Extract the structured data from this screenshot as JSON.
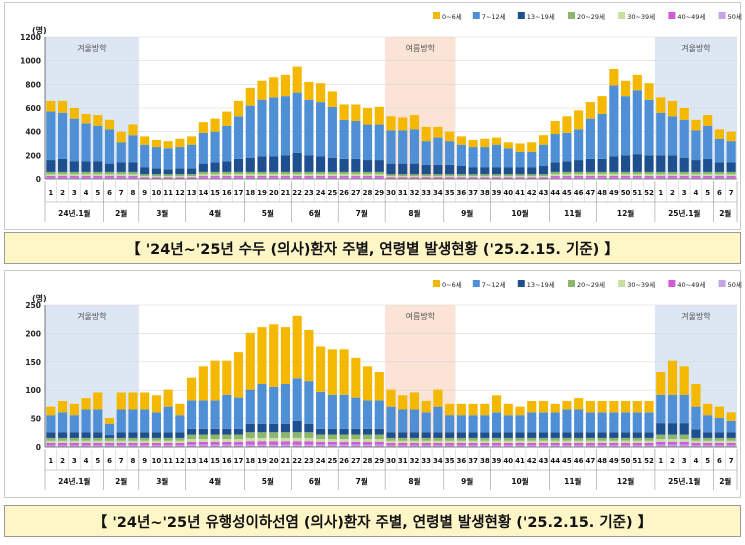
{
  "captions": [
    "【 '24년~'25년 수두 (의사)환자 주별, 연령별 발생현황 ('25.2.15. 기준) 】",
    "【 '24년~'25년 유행성이하선염 (의사)환자 주별, 연령별 발생현황 ('25.2.15. 기준) 】"
  ],
  "legend": [
    {
      "label": "0~6세",
      "color": "#f5b800"
    },
    {
      "label": "7~12세",
      "color": "#4f8fd6"
    },
    {
      "label": "13~19세",
      "color": "#1e4f8e"
    },
    {
      "label": "20~29세",
      "color": "#8cb56e"
    },
    {
      "label": "30~39세",
      "color": "#c7dfa0"
    },
    {
      "label": "40~49세",
      "color": "#d05ad8"
    },
    {
      "label": "50세 이상",
      "color": "#c9a3e8"
    }
  ],
  "periods": [
    {
      "label": "겨울방학",
      "start": 0,
      "end": 8,
      "fill": "#dde6f3"
    },
    {
      "label": "여름방학",
      "start": 29,
      "end": 35,
      "fill": "#fbe3d5"
    },
    {
      "label": "겨울방학",
      "start": 52,
      "end": 59,
      "fill": "#dde6f3"
    }
  ],
  "weeks": [
    "1",
    "2",
    "3",
    "4",
    "5",
    "6",
    "7",
    "8",
    "9",
    "10",
    "11",
    "12",
    "13",
    "14",
    "15",
    "16",
    "17",
    "18",
    "19",
    "20",
    "21",
    "22",
    "23",
    "24",
    "25",
    "26",
    "27",
    "28",
    "29",
    "30",
    "31",
    "32",
    "33",
    "34",
    "35",
    "36",
    "37",
    "38",
    "39",
    "40",
    "41",
    "42",
    "43",
    "44",
    "45",
    "46",
    "47",
    "48",
    "49",
    "50",
    "51",
    "52",
    "1",
    "2",
    "3",
    "4",
    "5",
    "6",
    "7"
  ],
  "months": [
    {
      "label": "24년.1월",
      "start": 0,
      "end": 4
    },
    {
      "label": "2월",
      "start": 5,
      "end": 7
    },
    {
      "label": "3월",
      "start": 8,
      "end": 11
    },
    {
      "label": "4월",
      "start": 12,
      "end": 16
    },
    {
      "label": "5월",
      "start": 17,
      "end": 20
    },
    {
      "label": "6월",
      "start": 21,
      "end": 24
    },
    {
      "label": "7월",
      "start": 25,
      "end": 28
    },
    {
      "label": "8월",
      "start": 29,
      "end": 33
    },
    {
      "label": "9월",
      "start": 34,
      "end": 37
    },
    {
      "label": "10월",
      "start": 38,
      "end": 42
    },
    {
      "label": "11월",
      "start": 43,
      "end": 46
    },
    {
      "label": "12월",
      "start": 47,
      "end": 51
    },
    {
      "label": "25년.1월",
      "start": 52,
      "end": 56
    },
    {
      "label": "2월",
      "start": 57,
      "end": 58
    }
  ],
  "chart_data": [
    {
      "type": "bar",
      "stacked": true,
      "title": "'24년~'25년 수두 (의사)환자 주별, 연령별 발생현황 ('25.2.15. 기준)",
      "ylabel": "(명)",
      "ylim": [
        0,
        1200
      ],
      "yticks": [
        0,
        200,
        400,
        600,
        800,
        1000,
        1200
      ],
      "categories": [
        "1",
        "2",
        "3",
        "4",
        "5",
        "6",
        "7",
        "8",
        "9",
        "10",
        "11",
        "12",
        "13",
        "14",
        "15",
        "16",
        "17",
        "18",
        "19",
        "20",
        "21",
        "22",
        "23",
        "24",
        "25",
        "26",
        "27",
        "28",
        "29",
        "30",
        "31",
        "32",
        "33",
        "34",
        "35",
        "36",
        "37",
        "38",
        "39",
        "40",
        "41",
        "42",
        "43",
        "44",
        "45",
        "46",
        "47",
        "48",
        "49",
        "50",
        "51",
        "52",
        "1",
        "2",
        "3",
        "4",
        "5",
        "6",
        "7"
      ],
      "series": [
        {
          "name": "0~6세",
          "values": [
            90,
            100,
            90,
            80,
            90,
            80,
            90,
            90,
            70,
            60,
            60,
            70,
            70,
            90,
            110,
            120,
            130,
            150,
            160,
            170,
            180,
            220,
            150,
            160,
            130,
            130,
            140,
            140,
            150,
            120,
            110,
            120,
            120,
            90,
            80,
            70,
            60,
            70,
            60,
            50,
            70,
            80,
            80,
            110,
            140,
            160,
            140,
            150,
            140,
            130,
            130,
            140,
            130,
            130,
            100,
            90,
            90,
            80,
            80
          ]
        },
        {
          "name": "7~12세",
          "values": [
            410,
            390,
            360,
            320,
            300,
            290,
            170,
            230,
            190,
            180,
            180,
            180,
            200,
            260,
            260,
            300,
            360,
            440,
            480,
            500,
            500,
            510,
            470,
            460,
            430,
            330,
            320,
            300,
            300,
            280,
            280,
            290,
            200,
            230,
            200,
            180,
            170,
            170,
            190,
            160,
            130,
            130,
            180,
            240,
            240,
            260,
            340,
            380,
            600,
            500,
            540,
            470,
            360,
            330,
            320,
            250,
            280,
            200,
            180
          ]
        },
        {
          "name": "13~19세",
          "values": [
            100,
            110,
            90,
            90,
            90,
            70,
            80,
            80,
            60,
            50,
            40,
            50,
            50,
            70,
            80,
            90,
            110,
            120,
            130,
            130,
            140,
            160,
            140,
            130,
            120,
            110,
            110,
            100,
            100,
            90,
            90,
            90,
            80,
            80,
            80,
            70,
            60,
            60,
            60,
            60,
            60,
            60,
            70,
            80,
            90,
            100,
            110,
            110,
            130,
            140,
            150,
            140,
            140,
            140,
            120,
            100,
            110,
            80,
            80
          ]
        },
        {
          "name": "20~29세",
          "values": [
            20,
            20,
            20,
            20,
            20,
            20,
            20,
            20,
            15,
            15,
            15,
            15,
            15,
            20,
            20,
            20,
            20,
            20,
            20,
            20,
            20,
            20,
            20,
            20,
            20,
            20,
            20,
            20,
            20,
            15,
            15,
            15,
            15,
            15,
            15,
            15,
            15,
            15,
            15,
            15,
            15,
            15,
            15,
            20,
            20,
            20,
            20,
            20,
            20,
            20,
            20,
            20,
            20,
            20,
            20,
            20,
            20,
            20,
            20
          ]
        },
        {
          "name": "30~39세",
          "values": [
            15,
            15,
            15,
            15,
            15,
            15,
            15,
            15,
            10,
            10,
            10,
            10,
            10,
            15,
            15,
            15,
            15,
            15,
            15,
            15,
            15,
            15,
            15,
            15,
            15,
            15,
            15,
            15,
            15,
            10,
            10,
            10,
            10,
            10,
            10,
            10,
            10,
            10,
            10,
            10,
            10,
            10,
            10,
            15,
            15,
            15,
            15,
            15,
            15,
            15,
            15,
            15,
            15,
            15,
            15,
            15,
            15,
            15,
            15
          ]
        },
        {
          "name": "40~49세",
          "values": [
            15,
            15,
            15,
            15,
            15,
            15,
            15,
            15,
            10,
            10,
            10,
            10,
            10,
            15,
            15,
            15,
            15,
            15,
            15,
            15,
            15,
            15,
            15,
            15,
            15,
            15,
            15,
            15,
            15,
            10,
            10,
            10,
            10,
            10,
            10,
            10,
            10,
            10,
            10,
            10,
            10,
            10,
            10,
            15,
            15,
            15,
            15,
            15,
            15,
            15,
            15,
            15,
            15,
            15,
            15,
            15,
            15,
            15,
            15
          ]
        },
        {
          "name": "50세 이상",
          "values": [
            10,
            10,
            10,
            10,
            10,
            10,
            10,
            10,
            5,
            5,
            5,
            5,
            5,
            10,
            10,
            10,
            10,
            10,
            10,
            10,
            10,
            10,
            10,
            10,
            10,
            10,
            10,
            10,
            10,
            5,
            5,
            5,
            5,
            5,
            5,
            5,
            5,
            5,
            5,
            5,
            5,
            5,
            5,
            10,
            10,
            10,
            10,
            10,
            10,
            10,
            10,
            10,
            10,
            10,
            10,
            10,
            10,
            10,
            10
          ]
        }
      ]
    },
    {
      "type": "bar",
      "stacked": true,
      "title": "'24년~'25년 유행성이하선염 (의사)환자 주별, 연령별 발생현황 ('25.2.15. 기준)",
      "ylabel": "(명)",
      "ylim": [
        0,
        250
      ],
      "yticks": [
        0,
        50,
        100,
        150,
        200,
        250
      ],
      "categories": [
        "1",
        "2",
        "3",
        "4",
        "5",
        "6",
        "7",
        "8",
        "9",
        "10",
        "11",
        "12",
        "13",
        "14",
        "15",
        "16",
        "17",
        "18",
        "19",
        "20",
        "21",
        "22",
        "23",
        "24",
        "25",
        "26",
        "27",
        "28",
        "29",
        "30",
        "31",
        "32",
        "33",
        "34",
        "35",
        "36",
        "37",
        "38",
        "39",
        "40",
        "41",
        "42",
        "43",
        "44",
        "45",
        "46",
        "47",
        "48",
        "49",
        "50",
        "51",
        "52",
        "1",
        "2",
        "3",
        "4",
        "5",
        "6",
        "7"
      ],
      "series": [
        {
          "name": "0~6세",
          "values": [
            15,
            20,
            20,
            20,
            30,
            10,
            30,
            30,
            30,
            30,
            30,
            20,
            40,
            60,
            70,
            60,
            80,
            100,
            100,
            110,
            100,
            110,
            90,
            80,
            80,
            80,
            70,
            60,
            50,
            30,
            25,
            30,
            20,
            30,
            20,
            20,
            20,
            20,
            30,
            20,
            15,
            20,
            20,
            15,
            15,
            20,
            20,
            20,
            20,
            20,
            20,
            20,
            40,
            60,
            50,
            40,
            20,
            20,
            15
          ]
        },
        {
          "name": "7~12세",
          "values": [
            30,
            35,
            30,
            40,
            40,
            20,
            40,
            40,
            40,
            35,
            45,
            30,
            50,
            50,
            50,
            60,
            55,
            60,
            70,
            65,
            70,
            75,
            75,
            65,
            60,
            60,
            55,
            50,
            50,
            45,
            40,
            40,
            35,
            45,
            30,
            30,
            30,
            30,
            35,
            30,
            30,
            35,
            35,
            35,
            40,
            40,
            35,
            35,
            35,
            35,
            35,
            35,
            50,
            50,
            50,
            40,
            30,
            25,
            20
          ]
        },
        {
          "name": "13~19세",
          "values": [
            10,
            10,
            10,
            10,
            10,
            5,
            10,
            10,
            10,
            10,
            10,
            10,
            10,
            10,
            10,
            10,
            10,
            15,
            15,
            15,
            15,
            20,
            15,
            10,
            10,
            10,
            10,
            10,
            10,
            10,
            10,
            10,
            10,
            10,
            10,
            10,
            10,
            10,
            10,
            10,
            10,
            10,
            10,
            10,
            10,
            10,
            10,
            10,
            10,
            10,
            10,
            10,
            20,
            20,
            20,
            15,
            10,
            10,
            10
          ]
        },
        {
          "name": "20~29세",
          "values": [
            5,
            5,
            5,
            5,
            5,
            5,
            5,
            5,
            5,
            5,
            5,
            5,
            8,
            8,
            8,
            8,
            8,
            10,
            10,
            10,
            10,
            10,
            10,
            8,
            8,
            8,
            8,
            8,
            8,
            5,
            5,
            5,
            5,
            5,
            5,
            5,
            5,
            5,
            5,
            5,
            5,
            5,
            5,
            5,
            5,
            5,
            5,
            5,
            5,
            5,
            5,
            5,
            8,
            8,
            8,
            5,
            5,
            5,
            5
          ]
        },
        {
          "name": "30~39세",
          "values": [
            4,
            4,
            4,
            4,
            4,
            4,
            4,
            4,
            4,
            4,
            4,
            4,
            5,
            5,
            5,
            5,
            5,
            6,
            6,
            6,
            6,
            6,
            6,
            5,
            5,
            5,
            5,
            5,
            5,
            4,
            4,
            4,
            4,
            4,
            4,
            4,
            4,
            4,
            4,
            4,
            4,
            4,
            4,
            4,
            4,
            4,
            4,
            4,
            4,
            4,
            4,
            4,
            5,
            5,
            5,
            4,
            4,
            4,
            4
          ]
        },
        {
          "name": "40~49세",
          "values": [
            4,
            4,
            4,
            4,
            4,
            4,
            4,
            4,
            4,
            4,
            4,
            4,
            5,
            5,
            5,
            5,
            5,
            6,
            6,
            6,
            6,
            6,
            6,
            5,
            5,
            5,
            5,
            5,
            5,
            4,
            4,
            4,
            4,
            4,
            4,
            4,
            4,
            4,
            4,
            4,
            4,
            4,
            4,
            4,
            4,
            4,
            4,
            4,
            4,
            4,
            4,
            4,
            5,
            5,
            5,
            4,
            4,
            4,
            4
          ]
        },
        {
          "name": "50세 이상",
          "values": [
            3,
            3,
            3,
            3,
            3,
            3,
            3,
            3,
            3,
            3,
            3,
            3,
            4,
            4,
            4,
            4,
            4,
            4,
            4,
            4,
            4,
            4,
            4,
            4,
            4,
            4,
            4,
            4,
            4,
            3,
            3,
            3,
            3,
            3,
            3,
            3,
            3,
            3,
            3,
            3,
            3,
            3,
            3,
            3,
            3,
            3,
            3,
            3,
            3,
            3,
            3,
            3,
            4,
            4,
            4,
            3,
            3,
            3,
            3
          ]
        }
      ]
    }
  ]
}
